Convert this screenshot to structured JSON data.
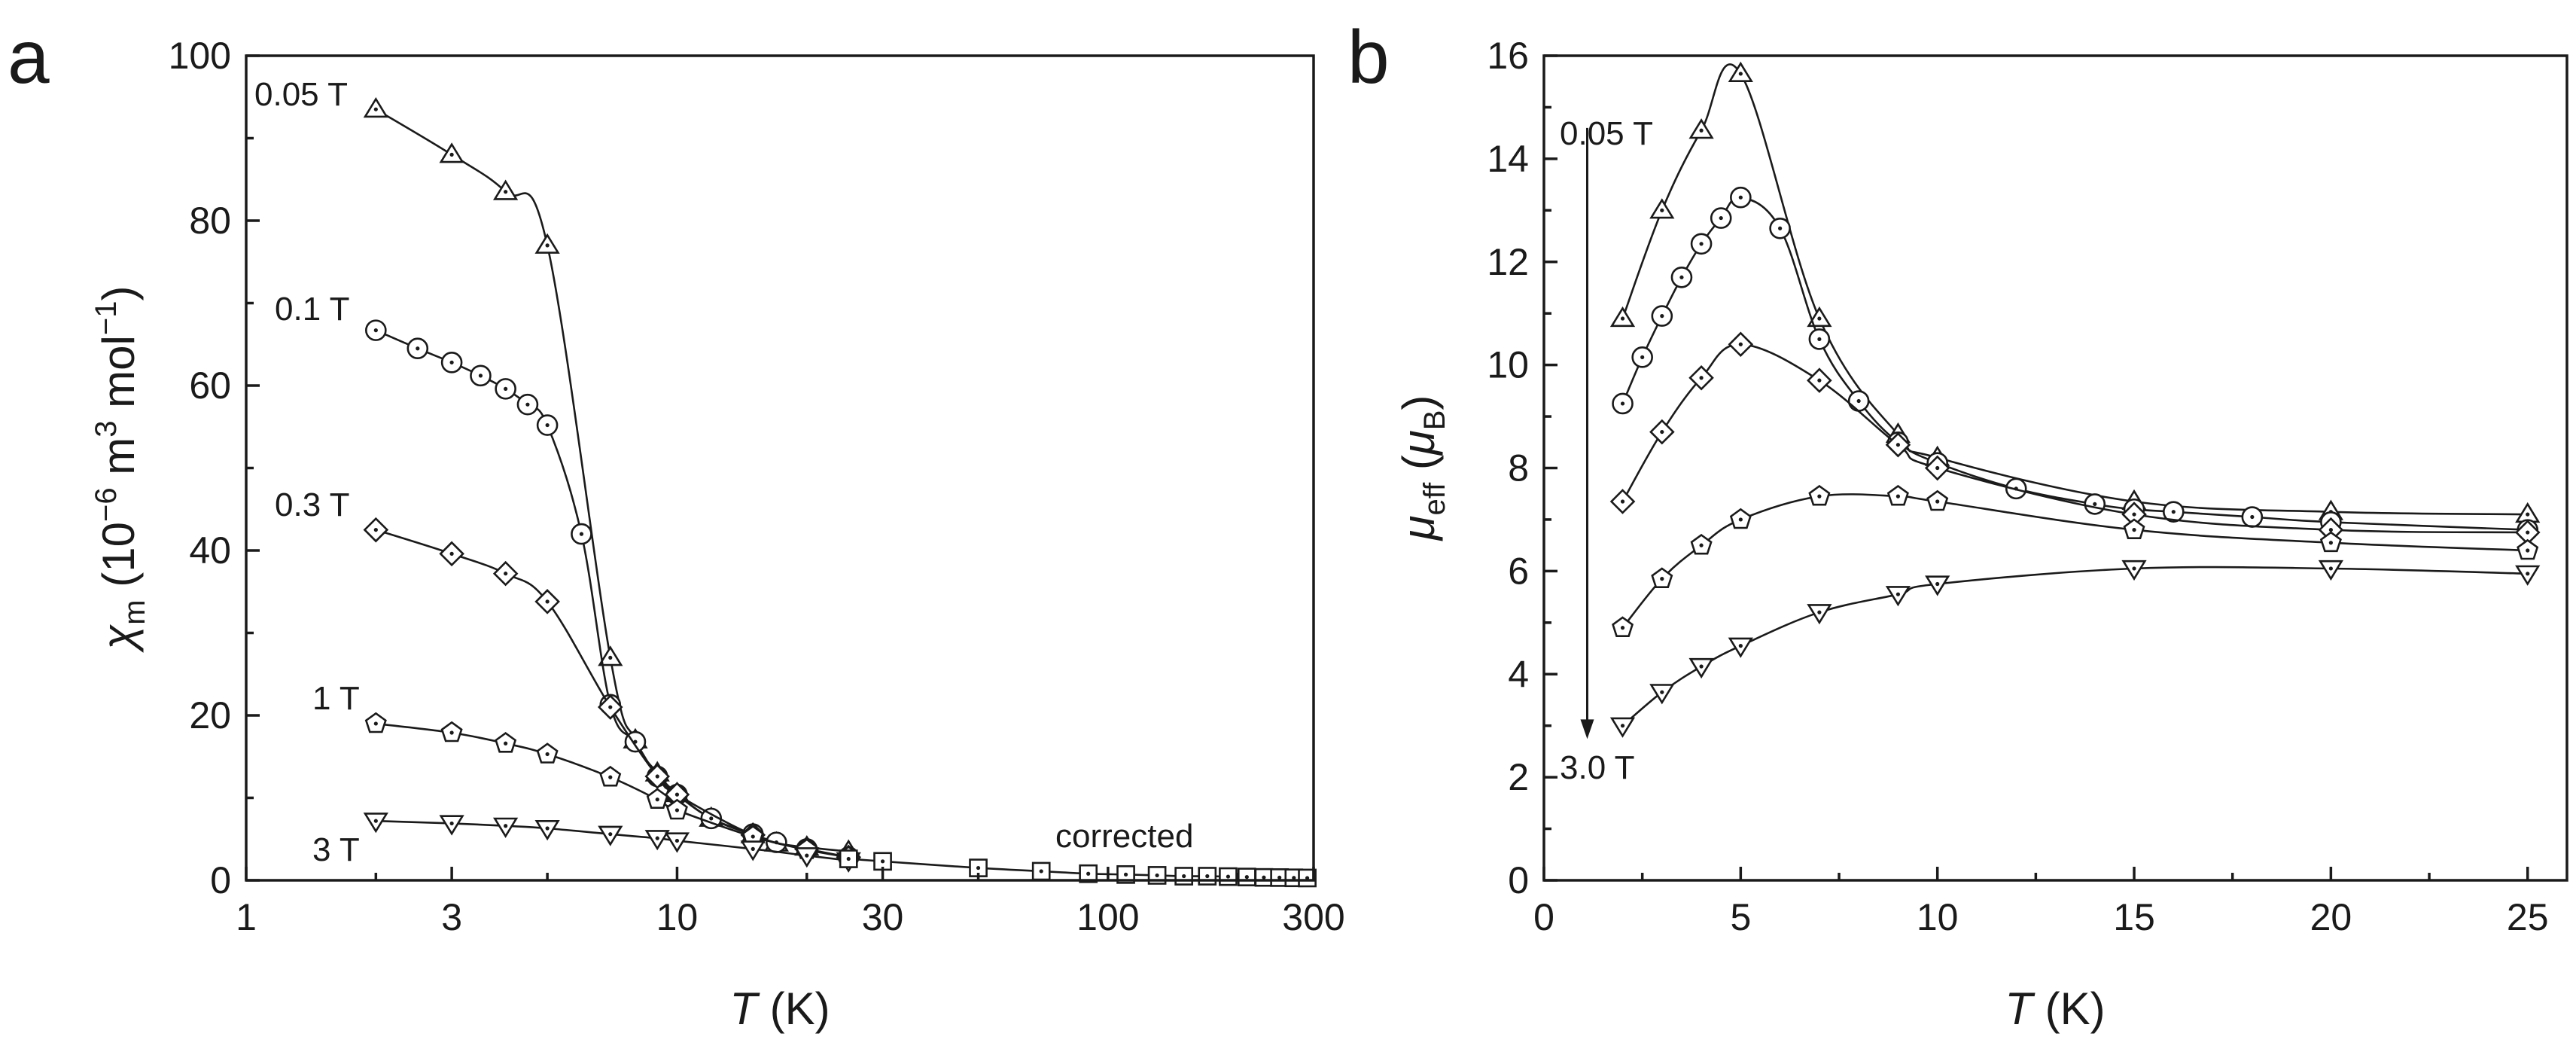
{
  "chart_data": [
    {
      "type": "line",
      "panel": "a",
      "xscale": "log",
      "xlim": [
        1,
        300
      ],
      "ylim": [
        0,
        100
      ],
      "xticks": [
        1,
        3,
        10,
        30,
        100,
        300
      ],
      "xtick_labels": [
        "1",
        "3",
        "10",
        "30",
        "100",
        "300"
      ],
      "yticks": [
        0,
        20,
        40,
        60,
        80,
        100
      ],
      "ytick_labels": [
        "0",
        "20",
        "40",
        "60",
        "80",
        "100"
      ],
      "xlabel": {
        "symbol": "T",
        "unit": " (K)"
      },
      "ylabel": {
        "symbol": "χ",
        "sub": "m",
        "pre": " (10",
        "exp1": "−6",
        "mid": " m",
        "exp2": "3",
        "mid2": " mol",
        "exp3": "−1",
        "post": ")"
      },
      "annotation": "corrected",
      "series": [
        {
          "name": "0.05 T",
          "marker": "triangle-up",
          "x": [
            2,
            3,
            4,
            5,
            7,
            8,
            9,
            10,
            12,
            15,
            17,
            20,
            25
          ],
          "y": [
            93.5,
            88,
            83.5,
            77,
            27,
            17,
            13,
            10.5,
            7.5,
            5.5,
            4.5,
            4,
            3.5
          ]
        },
        {
          "name": "0.1 T",
          "marker": "circle",
          "x": [
            2,
            2.5,
            3,
            3.5,
            4,
            4.5,
            5,
            6,
            7,
            8,
            9,
            10,
            12,
            15,
            17,
            20,
            25
          ],
          "y": [
            66.7,
            64.5,
            62.8,
            61.2,
            59.6,
            57.7,
            55.2,
            42,
            21.3,
            16.8,
            12.6,
            10.4,
            7.5,
            5.6,
            4.6,
            3.8,
            2.8
          ]
        },
        {
          "name": "0.3 T",
          "marker": "diamond",
          "x": [
            2,
            3,
            4,
            5,
            7,
            9,
            10,
            15,
            20,
            25
          ],
          "y": [
            42.5,
            39.6,
            37.2,
            33.8,
            21,
            12.6,
            10.4,
            5.5,
            3.8,
            2.8
          ]
        },
        {
          "name": "1 T",
          "marker": "pentagon",
          "x": [
            2,
            3,
            4,
            5,
            7,
            9,
            10,
            15,
            20,
            25
          ],
          "y": [
            19,
            17.9,
            16.6,
            15.3,
            12.5,
            9.8,
            8.5,
            5.3,
            3.7,
            2.8
          ]
        },
        {
          "name": "3 T",
          "marker": "triangle-down",
          "x": [
            2,
            3,
            4,
            5,
            7,
            9,
            10,
            15,
            20,
            25
          ],
          "y": [
            7.2,
            6.9,
            6.6,
            6.3,
            5.6,
            5.1,
            4.8,
            3.8,
            3.0,
            2.4
          ]
        },
        {
          "name": "corrected",
          "marker": "square",
          "x": [
            25,
            30,
            50,
            70,
            90,
            110,
            130,
            150,
            170,
            190,
            210,
            230,
            250,
            270,
            290
          ],
          "y": [
            2.6,
            2.3,
            1.5,
            1.1,
            0.8,
            0.7,
            0.6,
            0.5,
            0.5,
            0.45,
            0.4,
            0.35,
            0.33,
            0.3,
            0.28
          ]
        }
      ]
    },
    {
      "type": "line",
      "panel": "b",
      "xscale": "linear",
      "xlim": [
        0,
        26
      ],
      "ylim": [
        0,
        16
      ],
      "xticks": [
        0,
        5,
        10,
        15,
        20,
        25
      ],
      "xtick_labels": [
        "0",
        "5",
        "10",
        "15",
        "20",
        "25"
      ],
      "yticks": [
        0,
        2,
        4,
        6,
        8,
        10,
        12,
        14,
        16
      ],
      "ytick_labels": [
        "0",
        "2",
        "4",
        "6",
        "8",
        "10",
        "12",
        "14",
        "16"
      ],
      "xlabel": {
        "symbol": "T",
        "unit": " (K)"
      },
      "ylabel": {
        "symbol": "μ",
        "sub": "eff",
        "pre": " (",
        "symbol2": "μ",
        "sub2": "B",
        "post": ")"
      },
      "arrow": {
        "from": "0.05 T",
        "to": "3.0 T",
        "x": 1.1,
        "y_from": 14.6,
        "y_to": 2.8
      },
      "series": [
        {
          "name": "0.05 T",
          "marker": "triangle-up",
          "x": [
            2,
            3,
            4,
            5,
            7,
            9,
            10,
            15,
            20,
            25
          ],
          "y": [
            10.9,
            13.0,
            14.55,
            15.65,
            10.9,
            8.65,
            8.2,
            7.35,
            7.15,
            7.1
          ]
        },
        {
          "name": "0.1 T",
          "marker": "circle",
          "x": [
            2,
            2.5,
            3,
            3.5,
            4,
            4.5,
            5,
            6,
            7,
            8,
            9,
            10,
            12,
            14,
            15,
            16,
            18,
            20,
            25
          ],
          "y": [
            9.25,
            10.15,
            10.95,
            11.7,
            12.35,
            12.85,
            13.25,
            12.65,
            10.5,
            9.3,
            8.5,
            8.1,
            7.6,
            7.3,
            7.2,
            7.15,
            7.05,
            6.95,
            6.8
          ]
        },
        {
          "name": "0.3 T",
          "marker": "diamond",
          "x": [
            2,
            3,
            4,
            5,
            7,
            9,
            10,
            15,
            20,
            25
          ],
          "y": [
            7.35,
            8.7,
            9.75,
            10.4,
            9.7,
            8.45,
            8.0,
            7.1,
            6.8,
            6.75
          ]
        },
        {
          "name": "1 T",
          "marker": "pentagon",
          "x": [
            2,
            3,
            4,
            5,
            7,
            9,
            10,
            15,
            20,
            25
          ],
          "y": [
            4.9,
            5.85,
            6.5,
            7.0,
            7.45,
            7.45,
            7.35,
            6.8,
            6.55,
            6.4
          ]
        },
        {
          "name": "3 T",
          "marker": "triangle-down",
          "x": [
            2,
            3,
            4,
            5,
            7,
            9,
            10,
            15,
            20,
            25
          ],
          "y": [
            3.0,
            3.65,
            4.15,
            4.55,
            5.2,
            5.55,
            5.75,
            6.05,
            6.05,
            5.95
          ]
        }
      ]
    }
  ]
}
